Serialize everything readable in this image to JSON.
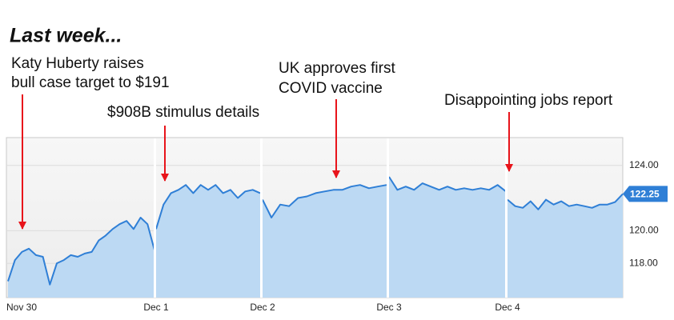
{
  "chart_data": {
    "type": "line",
    "title": "Last week...",
    "annotations": [
      "Katy Huberty raises",
      "bull case target to $191",
      "$908B stimulus details",
      "UK approves first",
      "COVID vaccine",
      "Disappointing jobs report"
    ],
    "sessions": [
      {
        "date": "Nov 30",
        "values": [
          116.9,
          118.2,
          118.7,
          118.9,
          118.5,
          118.4,
          116.7,
          118.0,
          118.2,
          118.5,
          118.4,
          118.6,
          118.7,
          119.4,
          119.7,
          120.1,
          120.4,
          120.6,
          120.1,
          120.8,
          120.4,
          118.8
        ]
      },
      {
        "date": "Dec 1",
        "values": [
          120.1,
          121.6,
          122.3,
          122.5,
          122.8,
          122.3,
          122.8,
          122.5,
          122.8,
          122.3,
          122.5,
          122.0,
          122.4,
          122.5,
          122.3
        ]
      },
      {
        "date": "Dec 2",
        "values": [
          121.9,
          120.8,
          121.6,
          121.5,
          122.0,
          122.1,
          122.3,
          122.4,
          122.5,
          122.5,
          122.7,
          122.8,
          122.6,
          122.7,
          122.8
        ]
      },
      {
        "date": "Dec 3",
        "values": [
          123.3,
          122.5,
          122.7,
          122.5,
          122.9,
          122.7,
          122.5,
          122.7,
          122.5,
          122.6,
          122.5,
          122.6,
          122.5,
          122.8,
          122.4
        ]
      },
      {
        "date": "Dec 4",
        "values": [
          121.9,
          121.5,
          121.4,
          121.8,
          121.3,
          121.9,
          121.6,
          121.8,
          121.5,
          121.6,
          121.5,
          121.4,
          121.6,
          121.6,
          121.75,
          122.25
        ]
      }
    ],
    "color": "#2f7fd6",
    "fill": "#bcd9f3",
    "ylim": [
      115.9,
      125.7
    ],
    "yticks": [
      {
        "value": 118,
        "label": "118.00"
      },
      {
        "value": 120,
        "label": "120.00"
      },
      {
        "value": 124,
        "label": "124.00"
      }
    ],
    "grid": true,
    "last_price": 122.25
  }
}
